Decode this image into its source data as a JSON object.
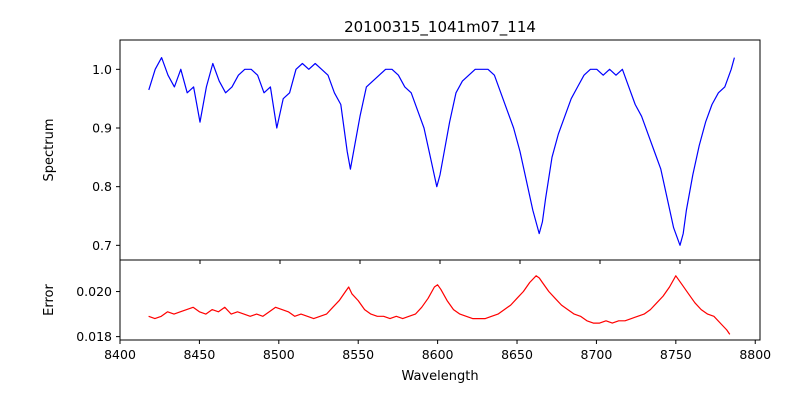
{
  "chart_data": [
    {
      "type": "line",
      "title": "20100315_1041m07_114",
      "xlabel": "",
      "ylabel": "Spectrum",
      "xlim": [
        8400,
        8800
      ],
      "ylim": [
        0.675,
        1.05
      ],
      "xticks": [
        8400,
        8450,
        8500,
        8550,
        8600,
        8650,
        8700,
        8750,
        8800
      ],
      "yticks": [
        0.7,
        0.8,
        0.9,
        1.0
      ],
      "ytick_labels": [
        "0.7",
        "0.8",
        "0.9",
        "1.0"
      ],
      "show_xtick_labels": false,
      "grid": false,
      "color": "#0000ff",
      "x": [
        8418,
        8422,
        8426,
        8430,
        8434,
        8438,
        8442,
        8446,
        8450,
        8454,
        8458,
        8462,
        8466,
        8470,
        8474,
        8478,
        8482,
        8486,
        8490,
        8494,
        8498,
        8502,
        8506,
        8510,
        8514,
        8518,
        8522,
        8526,
        8530,
        8534,
        8538,
        8542,
        8544,
        8546,
        8550,
        8554,
        8558,
        8562,
        8566,
        8570,
        8574,
        8578,
        8582,
        8586,
        8590,
        8594,
        8598,
        8600,
        8602,
        8606,
        8610,
        8614,
        8618,
        8622,
        8626,
        8630,
        8634,
        8638,
        8642,
        8646,
        8650,
        8654,
        8658,
        8662,
        8664,
        8666,
        8670,
        8674,
        8678,
        8682,
        8686,
        8690,
        8694,
        8698,
        8702,
        8706,
        8710,
        8714,
        8718,
        8722,
        8726,
        8730,
        8734,
        8738,
        8742,
        8746,
        8750,
        8752,
        8754,
        8758,
        8762,
        8766,
        8770,
        8774,
        8778,
        8782,
        8784
      ],
      "values": [
        0.965,
        1.0,
        1.02,
        0.99,
        0.97,
        1.0,
        0.96,
        0.97,
        0.91,
        0.97,
        1.01,
        0.98,
        0.96,
        0.97,
        0.99,
        1.0,
        1.0,
        0.99,
        0.96,
        0.97,
        0.9,
        0.95,
        0.96,
        1.0,
        1.01,
        1.0,
        1.01,
        1.0,
        0.99,
        0.96,
        0.94,
        0.86,
        0.83,
        0.86,
        0.92,
        0.97,
        0.98,
        0.99,
        1.0,
        1.0,
        0.99,
        0.97,
        0.96,
        0.93,
        0.9,
        0.85,
        0.8,
        0.82,
        0.85,
        0.91,
        0.96,
        0.98,
        0.99,
        1.0,
        1.0,
        1.0,
        0.99,
        0.96,
        0.93,
        0.9,
        0.86,
        0.81,
        0.76,
        0.72,
        0.74,
        0.78,
        0.85,
        0.89,
        0.92,
        0.95,
        0.97,
        0.99,
        1.0,
        1.0,
        0.99,
        1.0,
        0.99,
        1.0,
        0.97,
        0.94,
        0.92,
        0.89,
        0.86,
        0.83,
        0.78,
        0.73,
        0.7,
        0.72,
        0.76,
        0.82,
        0.87,
        0.91,
        0.94,
        0.96,
        0.97,
        1.0,
        1.02
      ]
    },
    {
      "type": "line",
      "title": "",
      "xlabel": "Wavelength",
      "ylabel": "Error",
      "xlim": [
        8400,
        8803
      ],
      "ylim": [
        0.01785,
        0.0214
      ],
      "xticks": [
        8400,
        8450,
        8500,
        8550,
        8600,
        8650,
        8700,
        8750,
        8800
      ],
      "xtick_labels": [
        "8400",
        "8450",
        "8500",
        "8550",
        "8600",
        "8650",
        "8700",
        "8750",
        "8800"
      ],
      "yticks": [
        0.018,
        0.02
      ],
      "ytick_labels": [
        "0.018",
        "0.020"
      ],
      "show_xtick_labels": true,
      "grid": false,
      "color": "#ff0000",
      "x": [
        8418,
        8422,
        8426,
        8430,
        8434,
        8438,
        8442,
        8446,
        8450,
        8454,
        8458,
        8462,
        8466,
        8470,
        8474,
        8478,
        8482,
        8486,
        8490,
        8494,
        8498,
        8502,
        8506,
        8510,
        8514,
        8518,
        8522,
        8526,
        8530,
        8534,
        8538,
        8542,
        8544,
        8546,
        8550,
        8554,
        8558,
        8562,
        8566,
        8570,
        8574,
        8578,
        8582,
        8586,
        8590,
        8594,
        8598,
        8600,
        8602,
        8606,
        8610,
        8614,
        8618,
        8622,
        8626,
        8630,
        8634,
        8638,
        8642,
        8646,
        8650,
        8654,
        8658,
        8662,
        8664,
        8666,
        8670,
        8674,
        8678,
        8682,
        8686,
        8690,
        8694,
        8698,
        8702,
        8706,
        8710,
        8714,
        8718,
        8722,
        8726,
        8730,
        8734,
        8738,
        8742,
        8746,
        8750,
        8752,
        8754,
        8758,
        8762,
        8766,
        8770,
        8774,
        8778,
        8782,
        8784
      ],
      "values": [
        0.0189,
        0.0188,
        0.0189,
        0.0191,
        0.019,
        0.0191,
        0.0192,
        0.0193,
        0.0191,
        0.019,
        0.0192,
        0.0191,
        0.0193,
        0.019,
        0.0191,
        0.019,
        0.0189,
        0.019,
        0.0189,
        0.0191,
        0.0193,
        0.0192,
        0.0191,
        0.0189,
        0.019,
        0.0189,
        0.0188,
        0.0189,
        0.019,
        0.0193,
        0.0196,
        0.02,
        0.0202,
        0.0199,
        0.0196,
        0.0192,
        0.019,
        0.0189,
        0.0189,
        0.0188,
        0.0189,
        0.0188,
        0.0189,
        0.019,
        0.0193,
        0.0197,
        0.0202,
        0.0203,
        0.0201,
        0.0196,
        0.0192,
        0.019,
        0.0189,
        0.0188,
        0.0188,
        0.0188,
        0.0189,
        0.019,
        0.0192,
        0.0194,
        0.0197,
        0.02,
        0.0204,
        0.0207,
        0.0206,
        0.0204,
        0.02,
        0.0197,
        0.0194,
        0.0192,
        0.019,
        0.0189,
        0.0187,
        0.0186,
        0.0186,
        0.0187,
        0.0186,
        0.0187,
        0.0187,
        0.0188,
        0.0189,
        0.019,
        0.0192,
        0.0195,
        0.0198,
        0.0202,
        0.0207,
        0.0205,
        0.0203,
        0.0199,
        0.0195,
        0.0192,
        0.019,
        0.0189,
        0.0186,
        0.0183,
        0.0181
      ]
    }
  ]
}
